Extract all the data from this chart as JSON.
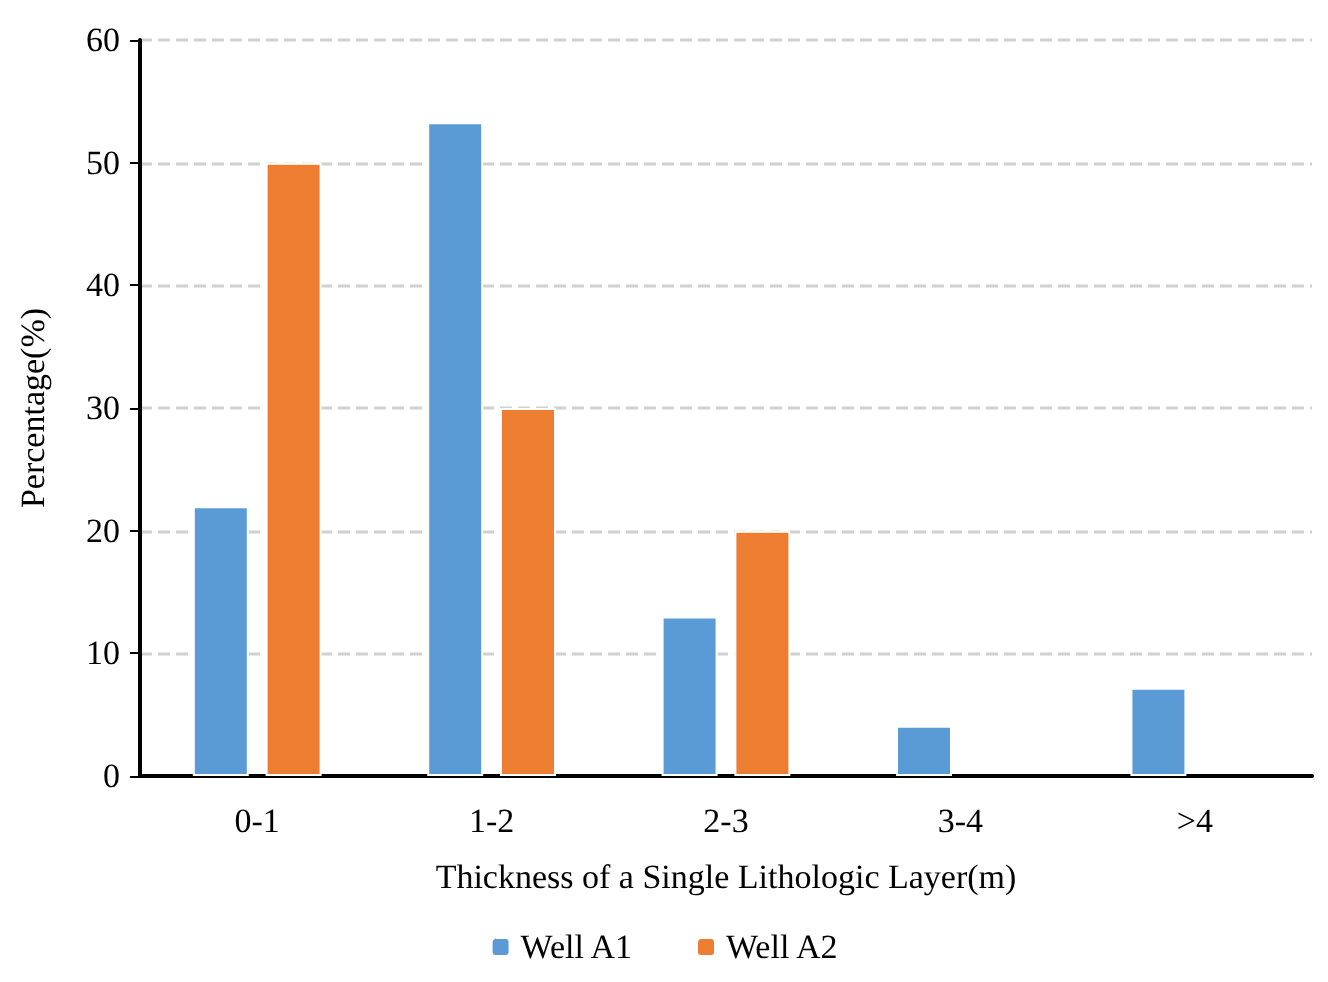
{
  "chart_data": {
    "type": "bar",
    "xlabel": "Thickness of a Single Lithologic Layer(m)",
    "ylabel": "Percentage(%)",
    "categories": [
      "0-1",
      "1-2",
      "2-3",
      "3-4",
      ">4"
    ],
    "series": [
      {
        "name": "Well A1",
        "color": "#5b9bd5",
        "values": [
          22,
          53.3,
          13,
          4.1,
          7.2
        ]
      },
      {
        "name": "Well A2",
        "color": "#ed7d31",
        "values": [
          50,
          30,
          20,
          null,
          null
        ]
      }
    ],
    "ylim": [
      0,
      60
    ],
    "yticks": [
      0,
      10,
      20,
      30,
      40,
      50,
      60
    ],
    "grid": "y",
    "legend": "bottom"
  }
}
